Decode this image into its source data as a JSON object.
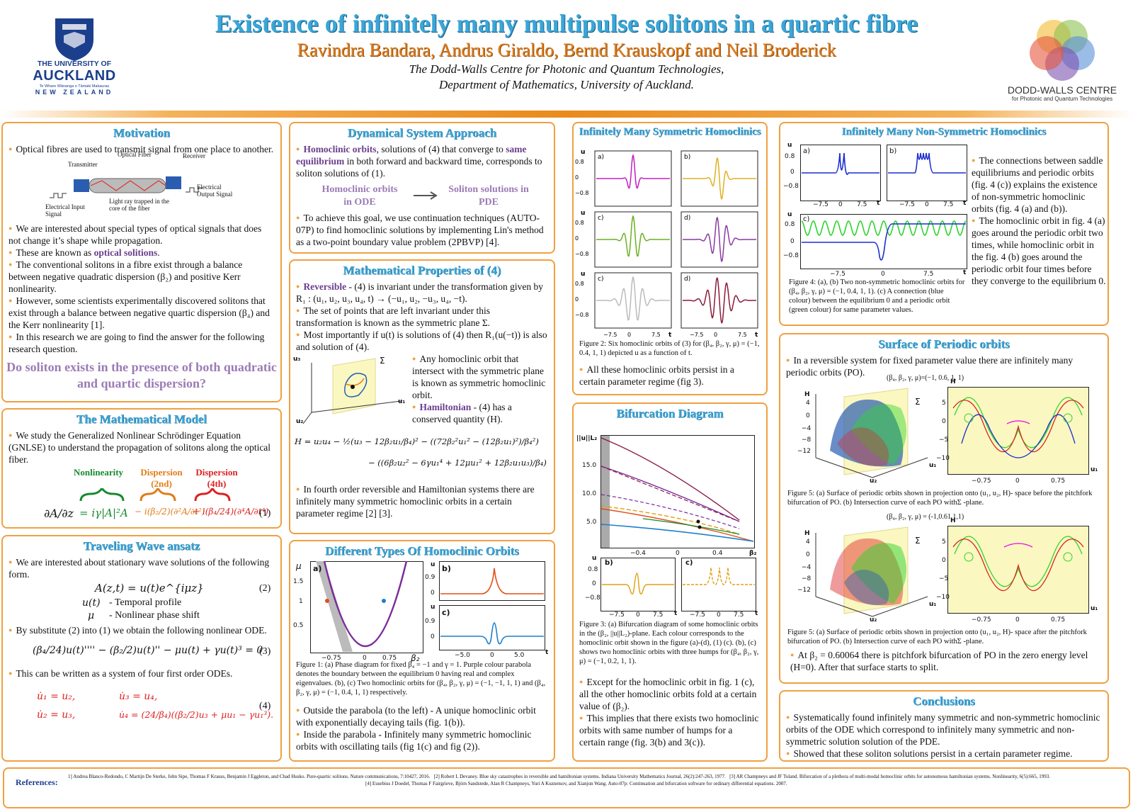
{
  "header": {
    "title": "Existence of infinitely many multipulse solitons in a quartic fibre",
    "authors": "Ravindra Bandara, Andrus Giraldo, Bernd Krauskopf and Neil Broderick",
    "affiliation_1": "The Dodd-Walls Centre for Photonic and Quantum Technologies,",
    "affiliation_2": "Department of Mathematics, University of Auckland.",
    "left_logo_line1": "THE UNIVERSITY OF",
    "left_logo_line2": "AUCKLAND",
    "left_logo_line3": "Te Whare Wānanga o Tāmaki Makaurau",
    "left_logo_line4": "NEW ZEALAND",
    "right_logo_line1": "DODD-WALLS CENTRE",
    "right_logo_line2": "for Photonic and Quantum Technologies"
  },
  "motivation": {
    "title": "Motivation",
    "p1": "Optical fibres are used to transmit signal from one place to another.",
    "fig_transmitter": "Transmitter",
    "fig_fiber": "Optical Fiber",
    "fig_receiver": "Receiver",
    "fig_input": "Electrical Input Signal",
    "fig_ray": "Light ray trapped in the core of the fiber",
    "fig_output": "Electrical Output Signal",
    "p2": "We are interested about special types of optical signals that does not change it’s shape while propagation.",
    "p3_pre": "These are known as ",
    "p3_hl": "optical solitions",
    "p3_post": ".",
    "p4": "The conventional solitons in a fibre exist through a balance between negative quadratic dispersion (β₂) and positive Kerr nonlinearity.",
    "p5": "However, some scientists experimentally discovered solitons that exist through a balance between negative quartic dispersion (β₄) and the Kerr nonlinearity [1].",
    "p6": "In this research we are going to find the answer for the following research question.",
    "question": "Do soliton exists in the presence of both quadratic and quartic dispersion?"
  },
  "model": {
    "title": "The Mathematical Model",
    "p1": "We study the Generalized Nonlinear Schrödinger Equation (GNLSE) to understand the propagation of solitons along the optical fiber.",
    "label_nl": "Nonlinearity",
    "label_d2": "Dispersion (2nd)",
    "label_d4": "Dispersion (4th)",
    "eq_lhs": "∂A/∂z",
    "eq_nl": "= iγ|A|²A",
    "eq_d2": "− i(β₂/2)(∂²A/∂t²)",
    "eq_d4": "+ i(β₄/24)(∂⁴A/∂t⁴)",
    "eq_num": "(1)"
  },
  "ansatz": {
    "title": "Traveling Wave ansatz",
    "p1": "We are interested about stationary wave solutions of the following form.",
    "eq2": "A(z,t) = u(t)e^{iμz}",
    "eq2_num": "(2)",
    "def_u_sym": "u(t)",
    "def_u": "- Temporal profile",
    "def_mu_sym": "μ",
    "def_mu": "- Nonlinear phase shift",
    "p2": "By substitute (2) into (1) we obtain the following nonlinear ODE.",
    "eq3": "(β₄/24)u(t)'''' − (β₂/2)u(t)'' − μu(t) + γu(t)³ = 0",
    "eq3_num": "(3)",
    "p3": "This can be written as a system of four first order ODEs.",
    "eq4_a": "u̇₁ = u₂,",
    "eq4_b": "u̇₃ = u₄,",
    "eq4_c": "u̇₂ = u₃,",
    "eq4_d": "u̇₄ = (24/β₄)((β₂/2)u₃ + μu₁ − γu₁³).",
    "eq4_num": "(4)"
  },
  "dynamical": {
    "title": "Dynamical System Approach",
    "p1_hl": "Homoclinic orbits",
    "p1_mid": ", solutions of (4) that converge to ",
    "p1_hl2": "same equilibrium",
    "p1_post": " in both forward and backward time, corresponds to soliton solutions of (1).",
    "left_box": "Homoclinic orbits in ODE",
    "right_box": "Soliton solutions in PDE",
    "p2": "To achieve this goal, we use continuation techniques (AUTO-07P) to find homoclinic solutions by implementing Lin's method as a two-point boundary value problem (2PBVP) [4]."
  },
  "math_props": {
    "title": "Mathematical Properties of (4)",
    "p1_hl": "Reversible",
    "p1_post": " - (4) is invariant under the transformation given by R₁ : (u₁, u₂, u₃, u₄, t) → (−u₁, u₂, −u₃, u₄, −t).",
    "p2": "The set of points that are left invariant under this transformation is known as the symmetric plane Σ.",
    "p3": "Most importantly if u(t) is solutions of (4) then R₁(u(−t)) is also and solution of (4).",
    "p4": "Any homoclinic orbit that intersect with the symmetric plane is known as symmetric homoclinic orbit.",
    "p5_hl": "Hamiltonian",
    "p5_post": " - (4) has a conserved quantity (H).",
    "sigma": "Σ",
    "ax_u3": "u₃",
    "ax_u2": "u₂",
    "ax_u1": "u₁",
    "ham_1": "H = u₂u₄ − ½(u₃ − 12β₂u₁/β₄)² − ((72β₂²u₁² − (12β₂u₁)²)/β₄²)",
    "ham_2": "− ((6β₂u₂² − 6γu₁⁴ + 12μu₁² + 12β₂u₁u₃)/β₄)",
    "p6": "In fourth order reversible and Hamiltonian systems there are infinitely many symmetric homoclinic orbits in a certain parameter regime [2] [3]."
  },
  "types": {
    "title": "Different Types Of Homoclinic Orbits",
    "caption": "Figure 1: (a) Phase diagram for fixed β₄ = −1 and γ = 1. Purple colour parabola denotes the boundary between the equilibrium 0 having real and complex eigenvalues. (b), (c) Two homoclinic orbits for (β₄, β₂, γ, μ) = (−1, −1, 1, 1) and (β₄, β₂, γ, μ) = (−1, 0.4, 1, 1) respectively.",
    "p1": "Outside the parabola (to the left) - A unique homoclinic orbit with exponentially decaying tails (fig. 1(b)).",
    "p2": "Inside the parabola - Infinitely many symmetric homoclinic orbits with oscillating tails (fig 1(c) and fig (2)).",
    "ax_mu": "μ",
    "ax_b2": "β₂",
    "ax_u": "u",
    "ax_t": "t",
    "ticks_y": [
      "1.5",
      "1",
      "0.5"
    ],
    "ticks_x": [
      "−0.75",
      "0",
      "0.75"
    ],
    "ticks_t": [
      "−5.0",
      "0",
      "5.0"
    ],
    "ticks_u": [
      "0.9",
      "0"
    ],
    "lbl_a": "a)",
    "lbl_b": "b)",
    "lbl_c": "c)"
  },
  "symmetric": {
    "title": "Infinitely Many Symmetric Homoclinics",
    "caption": "Figure 2: Six homoclinic orbits of (3) for (β₄, β₂, γ, μ) = (−1, 0.4, 1, 1) depicted u as a function of t.",
    "p1": "All these homoclinic orbits persist in a certain parameter regime (fig 3).",
    "ax_u": "u",
    "ax_t": "t",
    "ticks_y": [
      "0.8",
      "0",
      "−0.8"
    ],
    "ticks_x": [
      "−7.5",
      "0",
      "7.5"
    ],
    "labels": [
      "a)",
      "b)",
      "c)",
      "d)",
      "c)",
      "d)"
    ]
  },
  "bifurcation": {
    "title": "Bifurcation Diagram",
    "caption": "Figure 3: (a) Bifurcation diagram of some homoclinic orbits in the (β₂, ||u||L₂)-plane. Each colour corresponds to the homoclinic orbit shown in the figure (a)-(d), (1) (c). (b), (c) shows two homoclinic orbits with three humps for (β₄, β₂, γ, μ) = (−1, 0.2, 1, 1).",
    "p1": "Except for the homoclinic orbit in fig. 1 (c), all the other homoclinic orbits fold at a certain value of (β₂).",
    "p2": "This implies that there exists two homoclinic orbits with same number of humps for a certain range (fig. 3(b) and 3(c)).",
    "ax_norm": "||u||L₂",
    "ax_b2": "β₂",
    "ticks_y": [
      "15.0",
      "10.0",
      "5.0"
    ],
    "ticks_x": [
      "−0.4",
      "0",
      "0.4"
    ],
    "lbl_b": "b)",
    "lbl_c": "c)",
    "ticks_small_y": [
      "0.8",
      "0",
      "−0.8"
    ],
    "ticks_small_x": [
      "−7.5",
      "0",
      "7.5"
    ],
    "ax_u": "u",
    "ax_t": "t"
  },
  "nonsym": {
    "title": "Infinitely Many Non-Symmetric Homoclinics",
    "caption": "Figure 4: (a), (b) Two non-symmetric homoclinic orbits for (β₄, β₂, γ, μ) = (−1, 0.4, 1, 1). (c) A connection (blue colour) between the equilibrium 0 and a periodic orbit (green colour) for same parameter values.",
    "p1": "The connections between saddle equilibriums and periodic orbits (fig. 4 (c)) explains the existence of non-symmetric homoclinic orbits (fig. 4 (a) and (b)).",
    "p2": "The homoclinic orbit in fig. 4 (a) goes around the periodic orbit two times, while homoclinic orbit in the fig. 4 (b) goes around the periodic orbit four times before they converge to the equilibrium 0.",
    "ax_u": "u",
    "ax_t": "t",
    "ticks_y": [
      "0.8",
      "0",
      "−0.8"
    ],
    "ticks_x": [
      "−7.5",
      "0",
      "7.5"
    ],
    "lbl_a": "a)",
    "lbl_b": "b)",
    "lbl_c": "c)"
  },
  "surface": {
    "title": "Surface of Periodic orbits",
    "p1": "In a reversible system for fixed parameter value there are infinitely many periodic orbits (PO).",
    "param1": "(β₄, β₂, γ, μ)=(−1, 0.6, 1, 1)",
    "caption1": "Figure 5: (a) Surface of periodic orbits shown in projection onto (u₁, u₂, H)- space before the pitchfork bifurcation of PO. (b) Intersection curve of each PO withΣ -plane.",
    "param2": "(β₄, β₂, γ, μ) = (-1,0.61,1,1)",
    "caption2": "Figure 5: (a) Surface of periodic orbits shown in projection onto (u₁, u₂, H)- space after the pitchfork bifurcation of PO. (b) Intersection curve of each PO withΣ -plane.",
    "p2": "At β₂ = 0.60064 there is pitchfork bifurcation of PO in the zero energy level (H=0). After that surface starts to split.",
    "ax_H": "H",
    "ax_u1": "u₁",
    "ax_u2": "u₂",
    "sigma": "Σ",
    "ticks_H": [
      "4",
      "0",
      "−4",
      "−8",
      "−12"
    ],
    "ticks_H2": [
      "5",
      "0",
      "−5",
      "−10"
    ],
    "ticks_x2": [
      "−0.75",
      "0",
      "0.75"
    ]
  },
  "conclusions": {
    "title": "Conclusions",
    "p1": "Systematically found infinitely many symmetric and non-symmetric homoclinic orbits of the ODE which correspond to infinitely many symmetric and non-symmetric solution solution of the PDE.",
    "p2": "Showed that these soliton solutions persist in a certain parameter regime."
  },
  "references": {
    "label": "References:",
    "r1": "1] Andrea Blanco-Redondo, C Martijn De Sterke, John Sipe, Thomas F Krauss, Benjamin J Eggleton, and Chad Husko. Pure-quartic solitons. Nature communications, 7:10427, 2016.",
    "r2": "[2] Robert L Devaney. Blue sky catastrophes in reversible and hamiltonian systems. Indiana University Mathematics Journal, 26(2):247-263, 1977.",
    "r3": "[3] AR Champneys and JF Toland. Bifurcation of a plethora of multi-modal homoclinic orbits for autonomous hamiltonian systems. Nonlinearity, 6(5):665, 1993.",
    "r4": "[4] Eusebius J Doedel, Thomas F Fairgrieve, Björn Sandstede, Alan R Champneys, Yuri A Kuznetsov, and Xianjun Wang. Auto-07p: Continuation and bifurcation software for ordinary differential equations. 2007."
  },
  "colors": {
    "title": "#3aa6d8",
    "accent": "#f0a040",
    "authors": "#e07c1a",
    "highlight": "#6b3f8c"
  }
}
